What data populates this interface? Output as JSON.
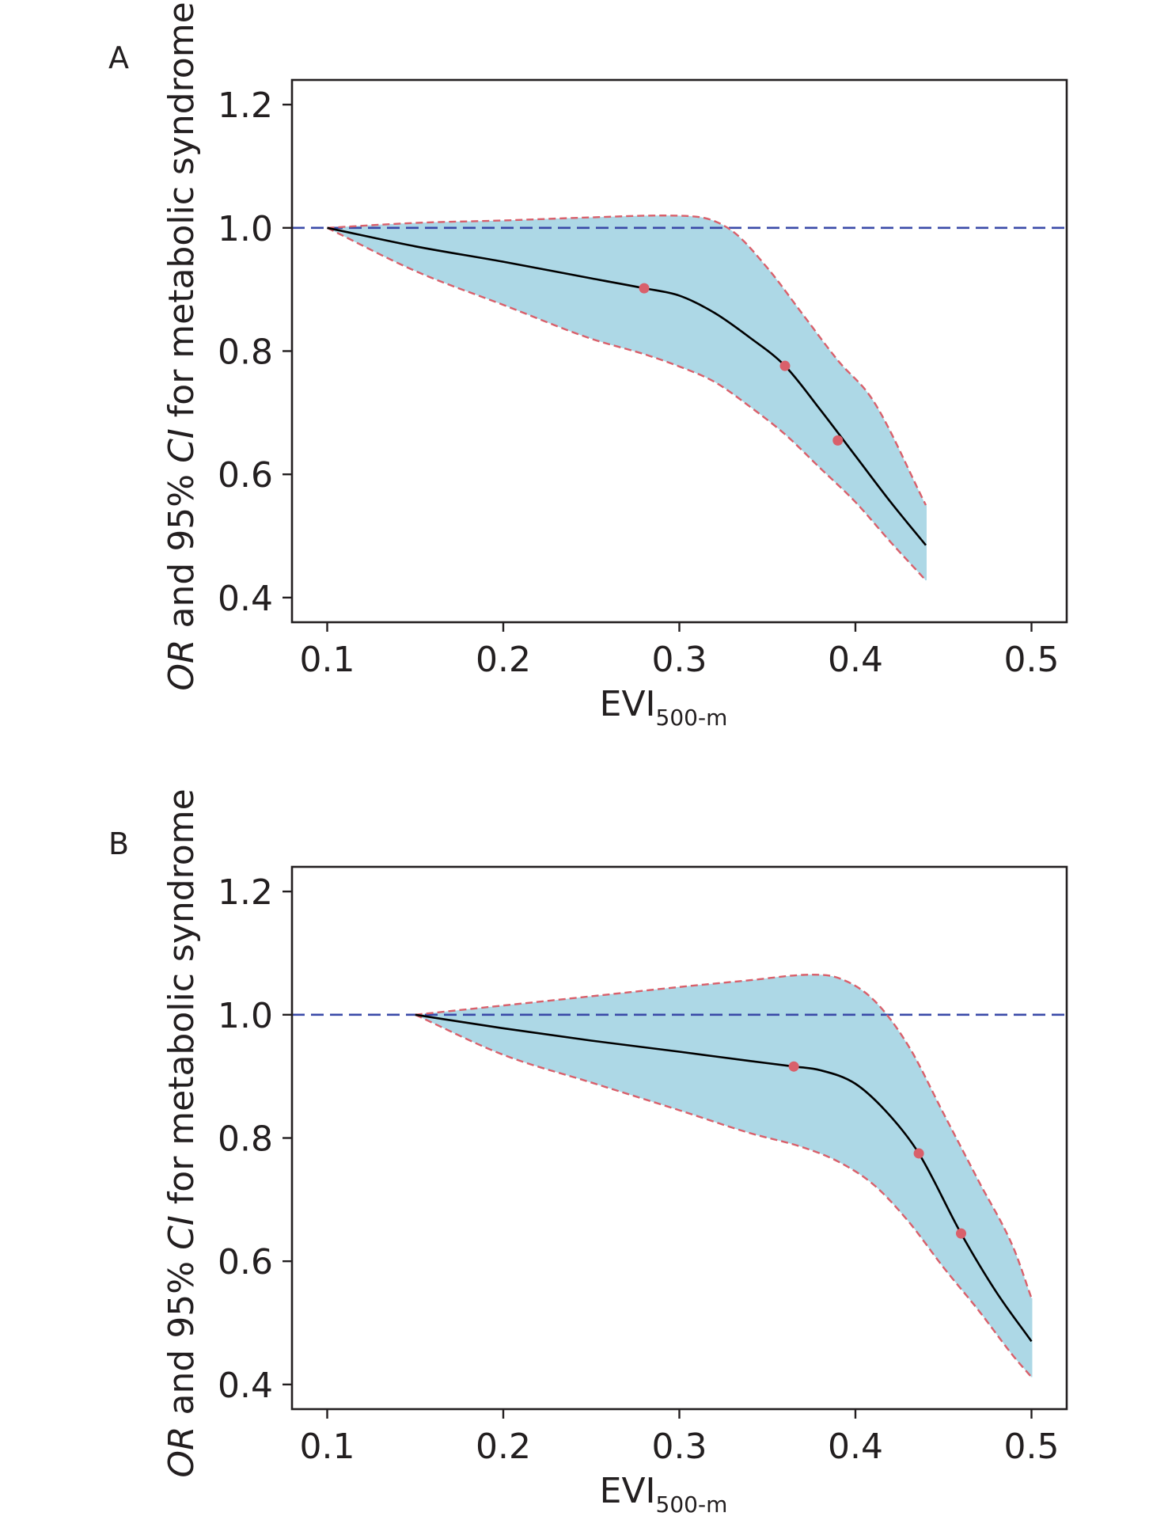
{
  "chart_data": [
    {
      "type": "line",
      "panel_label": "A",
      "xlabel": "EVI",
      "xlabel_subscript": "500-m",
      "ylabel_parts": [
        {
          "text": "OR",
          "italic": true
        },
        {
          "text": " and 95% ",
          "italic": false
        },
        {
          "text": "CI",
          "italic": true
        },
        {
          "text": " for metabolic syndrome",
          "italic": false
        }
      ],
      "xlim": [
        0.08,
        0.52
      ],
      "ylim": [
        0.36,
        1.24
      ],
      "xticks": [
        0.1,
        0.2,
        0.3,
        0.4,
        0.5
      ],
      "xtick_labels": [
        "0.1",
        "0.2",
        "0.3",
        "0.4",
        "0.5"
      ],
      "yticks": [
        0.4,
        0.6,
        0.8,
        1.0,
        1.2
      ],
      "ytick_labels": [
        "0.4",
        "0.6",
        "0.8",
        "1.0",
        "1.2"
      ],
      "reference_line": {
        "y": 1.0,
        "color": "#3a4aa8",
        "style": "dashed"
      },
      "series": [
        {
          "role": "estimate",
          "color": "#000000",
          "x": [
            0.1,
            0.15,
            0.2,
            0.25,
            0.28,
            0.3,
            0.32,
            0.34,
            0.36,
            0.38,
            0.4,
            0.42,
            0.44
          ],
          "y": [
            1.0,
            0.97,
            0.945,
            0.918,
            0.902,
            0.89,
            0.862,
            0.822,
            0.776,
            0.705,
            0.63,
            0.555,
            0.485
          ]
        },
        {
          "role": "upper_ci",
          "color": "#d9606b",
          "style": "dashed",
          "x": [
            0.1,
            0.15,
            0.2,
            0.25,
            0.29,
            0.31,
            0.33,
            0.35,
            0.37,
            0.39,
            0.41,
            0.44
          ],
          "y": [
            1.0,
            1.008,
            1.012,
            1.017,
            1.02,
            1.018,
            0.995,
            0.935,
            0.86,
            0.785,
            0.72,
            0.55
          ]
        },
        {
          "role": "lower_ci",
          "color": "#d9606b",
          "style": "dashed",
          "x": [
            0.1,
            0.15,
            0.2,
            0.25,
            0.28,
            0.3,
            0.32,
            0.34,
            0.36,
            0.38,
            0.4,
            0.42,
            0.44
          ],
          "y": [
            1.0,
            0.93,
            0.875,
            0.82,
            0.795,
            0.775,
            0.75,
            0.71,
            0.665,
            0.61,
            0.555,
            0.49,
            0.428
          ]
        }
      ],
      "points": {
        "color": "#d9606b",
        "x": [
          0.28,
          0.36,
          0.39
        ],
        "y": [
          0.902,
          0.776,
          0.655
        ]
      },
      "band_color": "#add8e6"
    },
    {
      "type": "line",
      "panel_label": "B",
      "xlabel": "EVI",
      "xlabel_subscript": "500-m",
      "ylabel_parts": [
        {
          "text": "OR",
          "italic": true
        },
        {
          "text": " and 95% ",
          "italic": false
        },
        {
          "text": "CI",
          "italic": true
        },
        {
          "text": " for metabolic syndrome",
          "italic": false
        }
      ],
      "xlim": [
        0.08,
        0.52
      ],
      "ylim": [
        0.36,
        1.24
      ],
      "xticks": [
        0.1,
        0.2,
        0.3,
        0.4,
        0.5
      ],
      "xtick_labels": [
        "0.1",
        "0.2",
        "0.3",
        "0.4",
        "0.5"
      ],
      "yticks": [
        0.4,
        0.6,
        0.8,
        1.0,
        1.2
      ],
      "ytick_labels": [
        "0.4",
        "0.6",
        "0.8",
        "1.0",
        "1.2"
      ],
      "reference_line": {
        "y": 1.0,
        "color": "#3a4aa8",
        "style": "dashed"
      },
      "series": [
        {
          "role": "estimate",
          "color": "#000000",
          "x": [
            0.15,
            0.2,
            0.25,
            0.3,
            0.34,
            0.365,
            0.38,
            0.4,
            0.42,
            0.436,
            0.46,
            0.48,
            0.5
          ],
          "y": [
            1.0,
            0.978,
            0.958,
            0.94,
            0.925,
            0.916,
            0.91,
            0.888,
            0.835,
            0.775,
            0.645,
            0.55,
            0.47
          ]
        },
        {
          "role": "upper_ci",
          "color": "#d9606b",
          "style": "dashed",
          "x": [
            0.15,
            0.2,
            0.25,
            0.3,
            0.34,
            0.375,
            0.39,
            0.41,
            0.43,
            0.45,
            0.47,
            0.49,
            0.5
          ],
          "y": [
            1.0,
            1.015,
            1.03,
            1.045,
            1.056,
            1.065,
            1.06,
            1.025,
            0.95,
            0.84,
            0.73,
            0.62,
            0.54
          ]
        },
        {
          "role": "lower_ci",
          "color": "#d9606b",
          "style": "dashed",
          "x": [
            0.15,
            0.2,
            0.25,
            0.3,
            0.34,
            0.37,
            0.39,
            0.41,
            0.43,
            0.45,
            0.47,
            0.49,
            0.5
          ],
          "y": [
            1.0,
            0.935,
            0.89,
            0.845,
            0.808,
            0.785,
            0.762,
            0.725,
            0.665,
            0.59,
            0.52,
            0.445,
            0.412
          ]
        }
      ],
      "points": {
        "color": "#d9606b",
        "x": [
          0.365,
          0.436,
          0.46
        ],
        "y": [
          0.916,
          0.775,
          0.645
        ]
      },
      "band_color": "#add8e6"
    }
  ]
}
